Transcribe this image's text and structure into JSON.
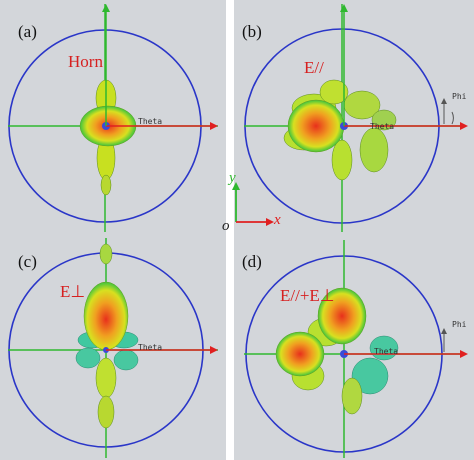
{
  "panels": [
    {
      "label": "(a)",
      "name": "Horn"
    },
    {
      "label": "(b)",
      "name": "E//"
    },
    {
      "label": "(c)",
      "name": "E⊥"
    },
    {
      "label": "(d)",
      "name": "E//+E⊥"
    }
  ],
  "axis_labels": {
    "theta": "Theta",
    "phi": "Phi"
  },
  "coordinate_key": {
    "origin": "o",
    "x": "x",
    "y": "y"
  },
  "colors": {
    "background": "#d3d6da",
    "circle": "#2a36c8",
    "theta_axis": "#2fb82f",
    "horizontal_axis": "#e02020",
    "vertical_axis": "#2fb82f",
    "title_color": "#d62020"
  }
}
